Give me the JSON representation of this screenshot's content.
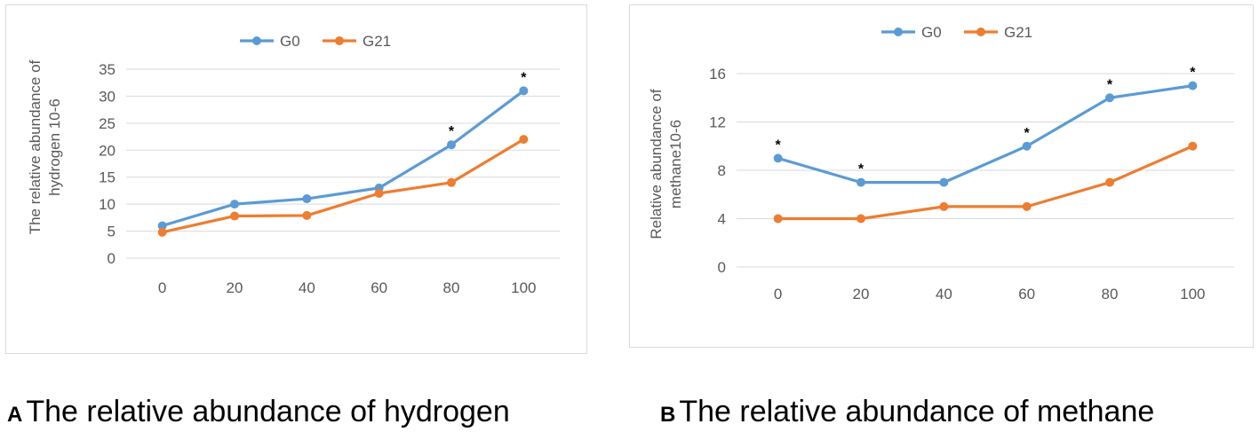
{
  "chart_data": [
    {
      "type": "line",
      "panel_label": "A",
      "caption": "The relative abundance of hydrogen",
      "ylabel_lines": [
        "The relative abundance of",
        "hydrogen 10-6"
      ],
      "xlabel": "",
      "categories": [
        "0",
        "20",
        "40",
        "60",
        "80",
        "100"
      ],
      "yticks": [
        0,
        5,
        10,
        15,
        20,
        25,
        30,
        35
      ],
      "ylim": [
        0,
        35
      ],
      "grid": true,
      "legend_position": "top-center",
      "series": [
        {
          "name": "G0",
          "color": "#5b9bd5",
          "values": [
            6,
            10,
            11,
            13,
            21,
            31
          ]
        },
        {
          "name": "G21",
          "color": "#ed7d31",
          "values": [
            4.8,
            7.8,
            7.9,
            12,
            14,
            22
          ]
        }
      ],
      "significance": [
        {
          "index": 4,
          "label": "*"
        },
        {
          "index": 5,
          "label": "*"
        }
      ]
    },
    {
      "type": "line",
      "panel_label": "B",
      "caption": "The relative abundance of methane",
      "ylabel_lines": [
        "Relative abundance of",
        "methane10-6"
      ],
      "xlabel": "",
      "categories": [
        "0",
        "20",
        "40",
        "60",
        "80",
        "100"
      ],
      "yticks": [
        0,
        4,
        8,
        12,
        16
      ],
      "ylim": [
        0,
        16
      ],
      "grid": true,
      "legend_position": "top-center",
      "series": [
        {
          "name": "G0",
          "color": "#5b9bd5",
          "values": [
            9,
            7,
            7,
            10,
            14,
            15
          ]
        },
        {
          "name": "G21",
          "color": "#ed7d31",
          "values": [
            4,
            4,
            5,
            5,
            7,
            10
          ]
        }
      ],
      "significance": [
        {
          "index": 0,
          "label": "*"
        },
        {
          "index": 1,
          "label": "*"
        },
        {
          "index": 3,
          "label": "*"
        },
        {
          "index": 4,
          "label": "*"
        },
        {
          "index": 5,
          "label": "*"
        }
      ]
    }
  ]
}
